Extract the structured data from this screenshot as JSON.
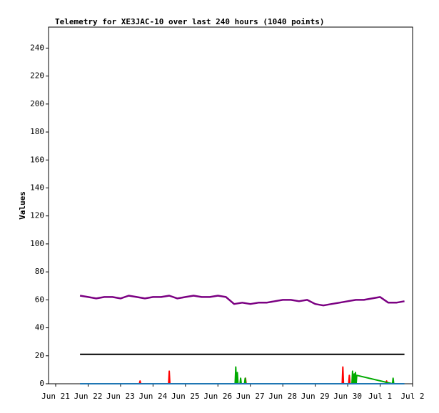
{
  "chart_data": {
    "type": "line",
    "title": "Telemetry for XE3JAC-10 over last 240 hours (1040 points)",
    "y_label": "Values",
    "xlim": [
      -0.22,
      11
    ],
    "xticks": [
      {
        "value": 0,
        "label": "Jun 21"
      },
      {
        "value": 1,
        "label": "Jun 22"
      },
      {
        "value": 2,
        "label": "Jun 23"
      },
      {
        "value": 3,
        "label": "Jun 24"
      },
      {
        "value": 4,
        "label": "Jun 25"
      },
      {
        "value": 5,
        "label": "Jun 26"
      },
      {
        "value": 6,
        "label": "Jun 27"
      },
      {
        "value": 7,
        "label": "Jun 28"
      },
      {
        "value": 8,
        "label": "Jun 29"
      },
      {
        "value": 9,
        "label": "Jun 30"
      },
      {
        "value": 10,
        "label": "Jul 1"
      },
      {
        "value": 11,
        "label": "Jul 2"
      }
    ],
    "ylim": [
      0,
      255
    ],
    "yticks": [
      0,
      20,
      40,
      60,
      80,
      100,
      120,
      140,
      160,
      180,
      200,
      220,
      240
    ],
    "series": [
      {
        "color": "#7b0082",
        "width": 2.5,
        "x": [
          0.75,
          1,
          1.25,
          1.5,
          1.75,
          2,
          2.25,
          2.5,
          2.75,
          3,
          3.25,
          3.5,
          3.75,
          4,
          4.25,
          4.5,
          4.75,
          5,
          5.25,
          5.5,
          5.75,
          6,
          6.25,
          6.5,
          6.75,
          7,
          7.25,
          7.5,
          7.75,
          8,
          8.25,
          8.5,
          8.75,
          9,
          9.25,
          9.5,
          9.75,
          10,
          10.25,
          10.5,
          10.75
        ],
        "values": [
          63,
          62,
          61,
          62,
          62,
          61,
          63,
          62,
          61,
          62,
          62,
          63,
          61,
          62,
          63,
          62,
          62,
          63,
          62,
          57,
          58,
          57,
          58,
          58,
          59,
          60,
          60,
          59,
          60,
          57,
          56,
          57,
          58,
          59,
          60,
          60,
          61,
          62,
          58,
          58,
          59
        ]
      },
      {
        "color": "#000000",
        "width": 2,
        "x": [
          0.75,
          10.75
        ],
        "values": [
          21,
          21
        ]
      },
      {
        "color": "#ff0000",
        "width": 2,
        "x": [
          2.58,
          2.6,
          2.62,
          3.48,
          3.5,
          3.52,
          5.83,
          5.85,
          5.87,
          8.83,
          8.85,
          8.87,
          9.03,
          9.05,
          9.07,
          10.18,
          10.2,
          10.22
        ],
        "values": [
          0,
          2,
          0,
          0,
          9,
          0,
          0,
          4,
          0,
          0,
          12,
          0,
          0,
          6,
          0,
          0,
          2,
          0
        ]
      },
      {
        "color": "#00aa00",
        "width": 2,
        "x": [
          5.53,
          5.55,
          5.57,
          5.6,
          5.62,
          5.68,
          5.7,
          5.72,
          5.82,
          5.84,
          5.86,
          9.13,
          9.15,
          9.17,
          9.2,
          9.22,
          9.24,
          9.26,
          9.28,
          10.38,
          10.4,
          10.42
        ],
        "values": [
          0,
          12,
          0,
          8,
          0,
          0,
          4,
          0,
          0,
          4,
          0,
          0,
          9,
          0,
          7,
          0,
          8,
          0,
          6,
          0,
          4,
          0
        ]
      },
      {
        "color": "#1f77b4",
        "width": 2,
        "x": [
          0.75,
          10.75
        ],
        "values": [
          0,
          0
        ]
      }
    ]
  }
}
